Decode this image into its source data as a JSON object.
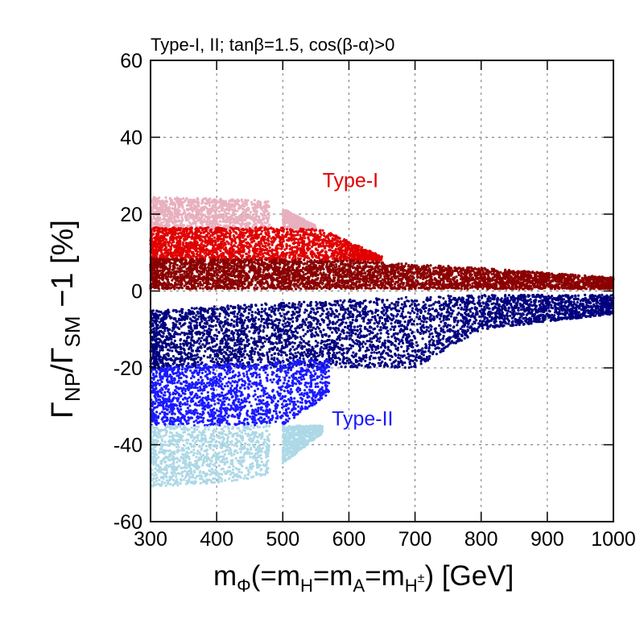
{
  "chart_data": {
    "type": "scatter",
    "title": "Type-I, II; tanβ=1.5, cos(β-α)>0",
    "xlabel": {
      "text": "m",
      "sub": "Φ",
      "paren_open": "(=m",
      "h_sub": "H",
      "eq1": "=m",
      "a_sub": "A",
      "eq2": "=m",
      "hpm_sub": "H",
      "hpm_sup": "±",
      "close": ") [GeV]"
    },
    "ylabel": {
      "gamma1": "Γ",
      "sub1": "NP",
      "slash": "/Γ",
      "sub2": "SM",
      "rest": " −1 [%]"
    },
    "xlim": [
      300,
      1000
    ],
    "ylim": [
      -60,
      60
    ],
    "x_ticks": [
      300,
      400,
      500,
      600,
      700,
      800,
      900,
      1000
    ],
    "y_ticks": [
      -60,
      -40,
      -20,
      0,
      20,
      40,
      60
    ],
    "grid": "dashed",
    "annotations": [
      {
        "text": "Type-I",
        "color": "#e00000",
        "x": 560,
        "y": 27
      },
      {
        "text": "Type-II",
        "color": "#1a1aff",
        "x": 574,
        "y": -35
      }
    ],
    "series": [
      {
        "color": "#e8b0bf",
        "x_range": [
          300,
          480
        ],
        "y_bands": [
          [
            300,
            16,
            24.5
          ],
          [
            400,
            16,
            24
          ],
          [
            480,
            16,
            23.5
          ]
        ],
        "x_range2": [
          500,
          550
        ],
        "y_bands2": [
          [
            500,
            16,
            21.5
          ],
          [
            550,
            16,
            17
          ]
        ]
      },
      {
        "color": "#e00000",
        "x_range": [
          300,
          650
        ],
        "y_bands": [
          [
            300,
            8,
            16.5
          ],
          [
            500,
            8,
            16.5
          ],
          [
            560,
            8,
            16
          ],
          [
            650,
            8,
            9
          ]
        ]
      },
      {
        "color": "#8b0000",
        "x_range": [
          300,
          1000
        ],
        "y_bands": [
          [
            300,
            0.5,
            8.5
          ],
          [
            600,
            0.5,
            8
          ],
          [
            800,
            0.5,
            6
          ],
          [
            1000,
            0.5,
            3.5
          ]
        ]
      },
      {
        "color": "#00007f",
        "x_range": [
          300,
          1000
        ],
        "y_bands": [
          [
            300,
            -20,
            -5
          ],
          [
            500,
            -20,
            -3
          ],
          [
            700,
            -20,
            -1.5
          ],
          [
            800,
            -10,
            -1
          ],
          [
            1000,
            -6,
            -1
          ]
        ]
      },
      {
        "color": "#1a1aff",
        "x_range": [
          300,
          570
        ],
        "y_bands": [
          [
            300,
            -35,
            -20
          ],
          [
            500,
            -35,
            -18
          ],
          [
            570,
            -27,
            -18
          ]
        ]
      },
      {
        "color": "#add8e6",
        "x_range": [
          300,
          480
        ],
        "y_bands": [
          [
            300,
            -51,
            -35
          ],
          [
            400,
            -50,
            -35
          ],
          [
            480,
            -48,
            -35
          ]
        ],
        "x_range2": [
          500,
          560
        ],
        "y_bands2": [
          [
            500,
            -45,
            -35
          ],
          [
            560,
            -37,
            -35
          ]
        ]
      }
    ]
  }
}
